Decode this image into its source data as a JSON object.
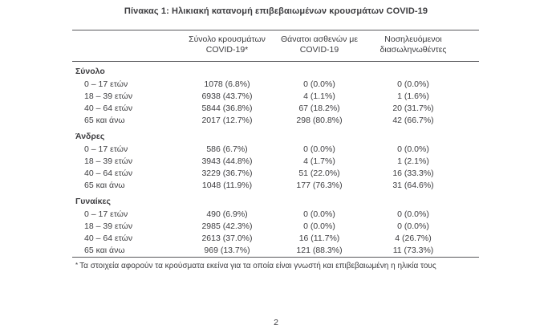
{
  "page": {
    "title": "Πίνακας 1: Ηλικιακή κατανομή επιβεβαιωμένων κρουσμάτων COVID-19",
    "page_number": "2"
  },
  "footnote": {
    "marker": "*",
    "text": "Τα στοιχεία αφορούν τα κρούσματα εκείνα για τα οποία είναι γνωστή και επιβεβαιωμένη η ηλικία τους"
  },
  "colors": {
    "ink": "#3d3d40",
    "rule": "#58585b"
  },
  "table": {
    "columns": [
      {
        "line1": "Σύνολο κρουσμάτων",
        "line2": "COVID-19*"
      },
      {
        "line1": "Θάνατοι ασθενών με",
        "line2": "COVID-19"
      },
      {
        "line1": "Νοσηλευόμενοι",
        "line2": "διασωληνωθέντες"
      }
    ],
    "sections": [
      {
        "label": "Σύνολο",
        "rows": [
          {
            "label": "0 – 17 ετών",
            "cells": [
              "1078 (6.8%)",
              "0 (0.0%)",
              "0 (0.0%)"
            ]
          },
          {
            "label": "18 – 39 ετών",
            "cells": [
              "6938 (43.7%)",
              "4 (1.1%)",
              "1 (1.6%)"
            ]
          },
          {
            "label": "40 – 64 ετών",
            "cells": [
              "5844 (36.8%)",
              "67 (18.2%)",
              "20 (31.7%)"
            ]
          },
          {
            "label": "65 και άνω",
            "cells": [
              "2017 (12.7%)",
              "298 (80.8%)",
              "42 (66.7%)"
            ]
          }
        ]
      },
      {
        "label": "Άνδρες",
        "rows": [
          {
            "label": "0 – 17 ετών",
            "cells": [
              "586 (6.7%)",
              "0 (0.0%)",
              "0 (0.0%)"
            ]
          },
          {
            "label": "18 – 39 ετών",
            "cells": [
              "3943 (44.8%)",
              "4 (1.7%)",
              "1 (2.1%)"
            ]
          },
          {
            "label": "40 – 64 ετών",
            "cells": [
              "3229 (36.7%)",
              "51 (22.0%)",
              "16 (33.3%)"
            ]
          },
          {
            "label": "65 και άνω",
            "cells": [
              "1048 (11.9%)",
              "177 (76.3%)",
              "31 (64.6%)"
            ]
          }
        ]
      },
      {
        "label": "Γυναίκες",
        "rows": [
          {
            "label": "0 – 17 ετών",
            "cells": [
              "490 (6.9%)",
              "0 (0.0%)",
              "0 (0.0%)"
            ]
          },
          {
            "label": "18 – 39 ετών",
            "cells": [
              "2985 (42.3%)",
              "0 (0.0%)",
              "0 (0.0%)"
            ]
          },
          {
            "label": "40 – 64 ετών",
            "cells": [
              "2613 (37.0%)",
              "16 (11.7%)",
              "4 (26.7%)"
            ]
          },
          {
            "label": "65 και άνω",
            "cells": [
              "969 (13.7%)",
              "121 (88.3%)",
              "11 (73.3%)"
            ]
          }
        ]
      }
    ]
  }
}
